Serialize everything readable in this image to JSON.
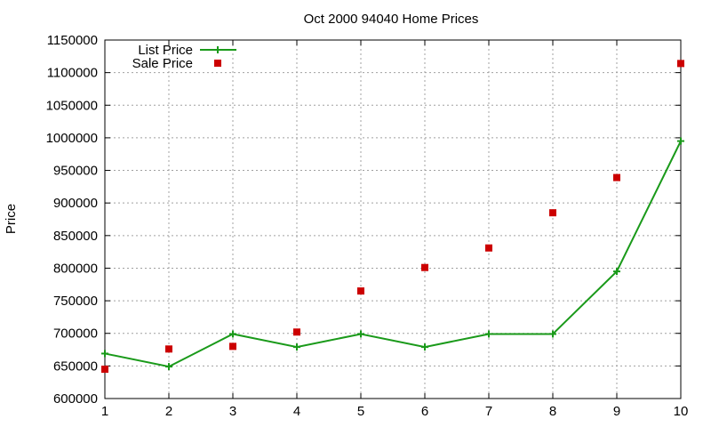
{
  "chart_data": {
    "type": "line",
    "title": "Oct 2000 94040 Home Prices",
    "xlabel": "",
    "ylabel": "Price",
    "xlim": [
      1,
      10
    ],
    "ylim": [
      600000,
      1150000
    ],
    "x_ticks": [
      1,
      2,
      3,
      4,
      5,
      6,
      7,
      8,
      9,
      10
    ],
    "y_ticks": [
      600000,
      650000,
      700000,
      750000,
      800000,
      850000,
      900000,
      950000,
      1000000,
      1050000,
      1100000,
      1150000
    ],
    "grid": true,
    "legend_position": "top-left",
    "series": [
      {
        "name": "List Price",
        "style": "line-with-plus-markers",
        "color": "#1a9a1a",
        "x": [
          1,
          2,
          3,
          4,
          5,
          6,
          7,
          8,
          9,
          10
        ],
        "values": [
          669000,
          649000,
          699000,
          679000,
          699000,
          679000,
          699000,
          699000,
          795000,
          995000
        ]
      },
      {
        "name": "Sale Price",
        "style": "square-markers",
        "color": "#cc0000",
        "x": [
          1,
          2,
          3,
          4,
          5,
          6,
          7,
          8,
          9,
          10
        ],
        "values": [
          645000,
          676000,
          680000,
          702000,
          765000,
          801000,
          831000,
          885000,
          939000,
          1114000
        ]
      }
    ]
  }
}
